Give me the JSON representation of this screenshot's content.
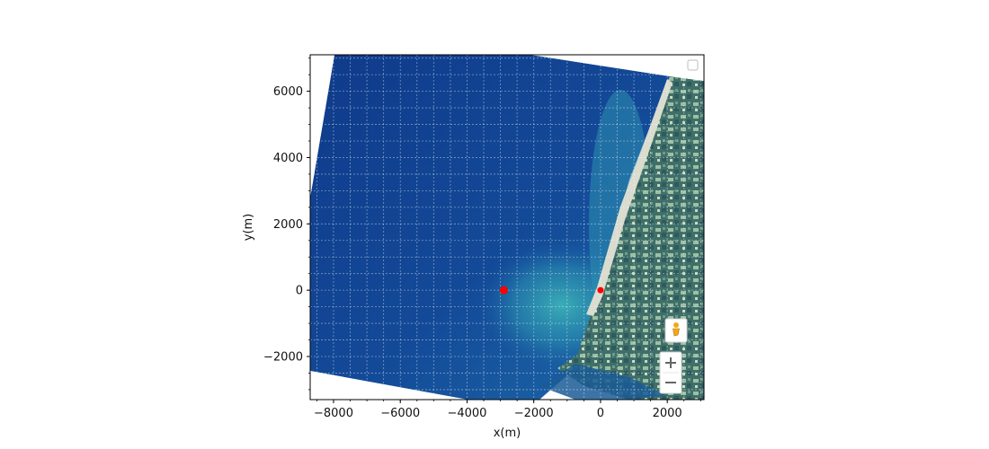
{
  "chart_data": {
    "type": "scatter",
    "title": "",
    "xlabel": "x(m)",
    "ylabel": "y(m)",
    "xlim": [
      -8700,
      3100
    ],
    "ylim": [
      -3300,
      7100
    ],
    "xticks": [
      -8000,
      -6000,
      -4000,
      -2000,
      0,
      2000
    ],
    "yticks": [
      -2000,
      0,
      2000,
      4000,
      6000
    ],
    "xtick_labels": [
      "−8000",
      "−6000",
      "−4000",
      "−2000",
      "0",
      "2000"
    ],
    "ytick_labels": [
      "−2000",
      "0",
      "2000",
      "4000",
      "6000"
    ],
    "minor_step": 500,
    "grid": true,
    "legend": "top-right (empty)",
    "points": [
      {
        "x": -2900,
        "y": 0,
        "color": "#ff0000",
        "size": "large"
      },
      {
        "x": 0,
        "y": 0,
        "color": "#ff0000",
        "size": "small"
      }
    ]
  },
  "map": {
    "background": "satellite-imagery",
    "sea_color": "#123f8e",
    "shallow_color": "#2e9fb0",
    "land_color": "#3d6e6a",
    "controls": {
      "pegman_icon": "pegman-icon",
      "zoom_in_icon": "zoom-in-icon",
      "zoom_out_icon": "zoom-out-icon"
    }
  }
}
